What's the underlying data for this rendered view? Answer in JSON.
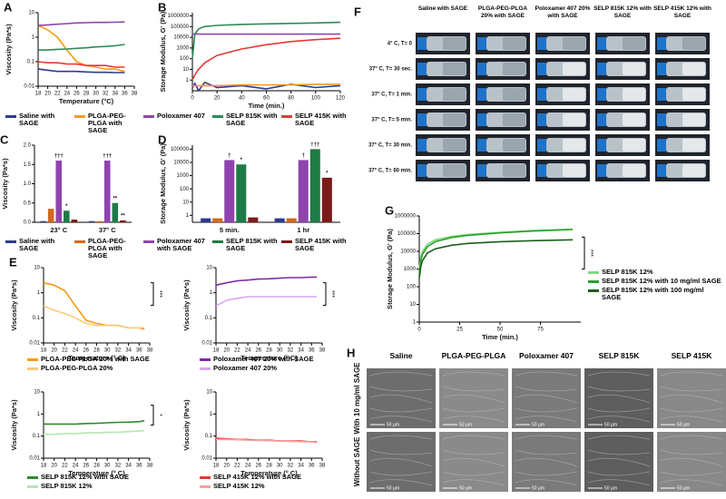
{
  "chart_data": [
    {
      "type": "line",
      "panel": "A",
      "log_y": true,
      "xlabel": "Temperature (°C)",
      "ylabel": "Viscosity (Pa*s)",
      "x": [
        18,
        20,
        22,
        24,
        26,
        28,
        30,
        32,
        34,
        36
      ],
      "xlim": [
        18,
        38
      ],
      "xticks": [
        18,
        20,
        22,
        24,
        26,
        28,
        30,
        32,
        34,
        36,
        38
      ],
      "ylim": [
        0.01,
        10
      ],
      "yticks": [
        0.01,
        0.1,
        1,
        10
      ],
      "series": [
        {
          "name": "Saline with SAGE",
          "color": "#2e3a8c",
          "values": [
            0.05,
            0.045,
            0.04,
            0.04,
            0.04,
            0.038,
            0.037,
            0.037,
            0.036,
            0.036
          ]
        },
        {
          "name": "PLGA-PEG-PLGA with SAGE",
          "color": "#f39c12",
          "values": [
            3,
            2,
            1,
            0.3,
            0.1,
            0.07,
            0.06,
            0.05,
            0.05,
            0.04
          ]
        },
        {
          "name": "Poloxamer 407",
          "color": "#8e44ad",
          "values": [
            3,
            3.2,
            3.4,
            3.6,
            3.8,
            3.9,
            4,
            4,
            4.1,
            4.2
          ]
        },
        {
          "name": "SELP 815K with SAGE",
          "color": "#2e8b57",
          "values": [
            0.3,
            0.3,
            0.32,
            0.33,
            0.35,
            0.37,
            0.4,
            0.42,
            0.45,
            0.5
          ]
        },
        {
          "name": "SELP 415K with SAGE",
          "color": "#e53935",
          "values": [
            0.1,
            0.09,
            0.09,
            0.08,
            0.08,
            0.07,
            0.07,
            0.07,
            0.06,
            0.06
          ]
        }
      ]
    },
    {
      "type": "line",
      "panel": "B",
      "log_y": true,
      "xlabel": "Time (min.)",
      "ylabel": "Storage Modulus, G' (Pa)",
      "x": [
        0,
        2,
        5,
        10,
        20,
        40,
        60,
        80,
        100,
        120
      ],
      "xlim": [
        0,
        120
      ],
      "xticks": [
        0,
        20,
        40,
        60,
        80,
        100,
        120
      ],
      "ylim": [
        0.1,
        2000000
      ],
      "yticks": [
        1,
        10,
        100,
        1000,
        10000,
        100000,
        1000000
      ],
      "series": [
        {
          "color": "#2e3a8c",
          "values": [
            0.2,
            0.5,
            0.1,
            0.6,
            0.2,
            0.3,
            0.15,
            0.4,
            0.2,
            0.3
          ]
        },
        {
          "color": "#f39c12",
          "values": [
            0.3,
            0.3,
            0.3,
            0.3,
            0.3,
            0.35,
            0.35,
            0.35,
            0.4,
            0.4
          ]
        },
        {
          "color": "#8e44ad",
          "values": [
            20000,
            20000,
            20000,
            20000,
            20000,
            20000,
            20000,
            20000,
            20000,
            20000
          ]
        },
        {
          "color": "#2e8b57",
          "values": [
            100,
            20000,
            60000,
            100000,
            130000,
            160000,
            180000,
            200000,
            220000,
            250000
          ]
        },
        {
          "color": "#e53935",
          "values": [
            1,
            3,
            10,
            40,
            200,
            800,
            2000,
            4000,
            6000,
            8000
          ]
        }
      ]
    },
    {
      "type": "bar",
      "panel": "C",
      "ylabel": "Viscosity (Pa*s)",
      "categories": [
        "23° C",
        "37° C"
      ],
      "ylim": [
        0,
        2
      ],
      "yticks": [
        {
          "value": 0,
          "label": "0.0"
        },
        0.5,
        {
          "value": 1,
          "label": "1.0"
        },
        1.5,
        {
          "value": 2,
          "label": "2.0"
        }
      ],
      "series": [
        {
          "name": "Saline with SAGE",
          "color": "#2e3a8c",
          "values": [
            0.03,
            0.03
          ]
        },
        {
          "name": "PLGA-PEG-PLGA with SAGE",
          "color": "#d2691e",
          "values": [
            0.35,
            0.03
          ]
        },
        {
          "name": "Poloxamer 407 with SAGE",
          "color": "#8e44ad",
          "values": [
            1.6,
            1.6
          ],
          "marks": [
            "†††",
            "†††"
          ]
        },
        {
          "name": "SELP 815K with SAGE",
          "color": "#1e7b45",
          "values": [
            0.3,
            0.5
          ],
          "marks": [
            "*",
            "**"
          ]
        },
        {
          "name": "SELP 415K with SAGE",
          "color": "#7b1a1a",
          "values": [
            0.07,
            0.05
          ],
          "marks": [
            null,
            "**"
          ]
        }
      ]
    },
    {
      "type": "bar",
      "panel": "D",
      "log_y": true,
      "ylabel": "Storage Modulus, G' (Pa)",
      "categories": [
        "5 min.",
        "1 hr"
      ],
      "ylim": [
        0.3,
        200000
      ],
      "yticks": [
        1,
        10,
        100,
        1000,
        10000,
        100000
      ],
      "series": [
        {
          "color": "#2e3a8c",
          "values": [
            0.6,
            0.6
          ]
        },
        {
          "color": "#d2691e",
          "values": [
            0.6,
            0.6
          ]
        },
        {
          "color": "#8e44ad",
          "values": [
            15000,
            15000
          ],
          "marks": [
            "†",
            "†"
          ]
        },
        {
          "color": "#1e7b45",
          "values": [
            7000,
            100000
          ],
          "marks": [
            "*",
            "†††"
          ]
        },
        {
          "color": "#7b1a1a",
          "values": [
            0.7,
            700
          ],
          "marks": [
            null,
            "*"
          ]
        }
      ]
    },
    {
      "type": "line",
      "panel": "E",
      "log_y": true,
      "xlabel": "Temperature (° C)",
      "ylabel": "Viscosity (Pa*s)",
      "significance": "***",
      "x": [
        18,
        20,
        22,
        24,
        26,
        28,
        30,
        32,
        34,
        36,
        37
      ],
      "xlim": [
        18,
        38
      ],
      "xticks": [
        18,
        20,
        22,
        24,
        26,
        28,
        30,
        32,
        34,
        36,
        38
      ],
      "ylim": [
        0.01,
        10
      ],
      "yticks": [
        0.01,
        0.1,
        1,
        10
      ],
      "series": [
        {
          "name": "PLGA-PEG-PLGA 20% with SAGE",
          "color": "#f39c12",
          "values": [
            2.5,
            2,
            1.2,
            0.3,
            0.08,
            0.06,
            0.05,
            0.05,
            0.04,
            0.04,
            0.035
          ]
        },
        {
          "name": "PLGA-PEG-PLGA 20%",
          "color": "#fbc97a",
          "values": [
            0.3,
            0.2,
            0.15,
            0.1,
            0.06,
            0.05,
            0.05,
            0.05,
            0.04,
            0.04,
            0.04
          ]
        }
      ]
    },
    {
      "type": "line",
      "log_y": true,
      "xlabel": "Temperature (° C)",
      "ylabel": "Viscosity (Pa*s)",
      "significance": "***",
      "x": [
        18,
        20,
        22,
        24,
        26,
        28,
        30,
        32,
        34,
        36,
        37
      ],
      "xlim": [
        18,
        38
      ],
      "xticks": [
        18,
        20,
        22,
        24,
        26,
        28,
        30,
        32,
        34,
        36,
        38
      ],
      "ylim": [
        0.01,
        10
      ],
      "yticks": [
        0.01,
        0.1,
        1,
        10
      ],
      "series": [
        {
          "name": "Poloxamer 407 20% with SAGE",
          "color": "#7b2fa0",
          "values": [
            2,
            2.5,
            3,
            3.2,
            3.5,
            3.6,
            3.8,
            4,
            4,
            4.2,
            4.2
          ]
        },
        {
          "name": "Poloxamer 407 20%",
          "color": "#d9a6f0",
          "values": [
            0.3,
            0.5,
            0.6,
            0.7,
            0.7,
            0.7,
            0.7,
            0.7,
            0.7,
            0.7,
            0.7
          ]
        }
      ]
    },
    {
      "type": "line",
      "log_y": true,
      "xlabel": "Temperature (° C)",
      "ylabel": "Viscosity (Pa*s)",
      "significance": "*",
      "x": [
        18,
        20,
        22,
        24,
        26,
        28,
        30,
        32,
        34,
        36,
        37
      ],
      "xlim": [
        18,
        38
      ],
      "xticks": [
        18,
        20,
        22,
        24,
        26,
        28,
        30,
        32,
        34,
        36,
        38
      ],
      "ylim": [
        0.01,
        10
      ],
      "yticks": [
        0.01,
        0.1,
        1,
        10
      ],
      "series": [
        {
          "name": "SELP 815K 12% with SAGE",
          "color": "#2e8b2e",
          "values": [
            0.35,
            0.35,
            0.35,
            0.35,
            0.37,
            0.38,
            0.4,
            0.42,
            0.43,
            0.45,
            0.5
          ]
        },
        {
          "name": "SELP 815K 12%",
          "color": "#b5e6b0",
          "values": [
            0.12,
            0.12,
            0.13,
            0.13,
            0.14,
            0.14,
            0.15,
            0.15,
            0.16,
            0.17,
            0.18
          ]
        }
      ]
    },
    {
      "type": "line",
      "log_y": true,
      "xlabel": "Temperature (° C)",
      "ylabel": "Viscosity (Pa*s)",
      "x": [
        18,
        20,
        22,
        24,
        26,
        28,
        30,
        32,
        34,
        36,
        37
      ],
      "xlim": [
        18,
        38
      ],
      "xticks": [
        18,
        20,
        22,
        24,
        26,
        28,
        30,
        32,
        34,
        36,
        38
      ],
      "ylim": [
        0.01,
        10
      ],
      "yticks": [
        0.01,
        0.1,
        1,
        10
      ],
      "series": [
        {
          "name": "SELP 415K 12% with SAGE",
          "color": "#e53935",
          "values": [
            0.08,
            0.075,
            0.07,
            0.07,
            0.065,
            0.065,
            0.06,
            0.06,
            0.06,
            0.055,
            0.055
          ]
        },
        {
          "name": "SELP 415K 12%",
          "color": "#f5a3a1",
          "values": [
            0.07,
            0.07,
            0.068,
            0.066,
            0.064,
            0.062,
            0.06,
            0.058,
            0.056,
            0.055,
            0.05
          ]
        }
      ]
    },
    {
      "type": "line",
      "panel": "G",
      "log_y": true,
      "xlabel": "Time (min.)",
      "ylabel": "Storage Modulus, G' (Pa)",
      "significance": "***",
      "x": [
        0,
        1,
        2,
        5,
        10,
        20,
        30,
        50,
        70,
        95
      ],
      "xlim": [
        0,
        100
      ],
      "xticks": [
        0,
        25,
        50,
        75
      ],
      "ylim": [
        1,
        1000000
      ],
      "yticks": [
        1,
        10,
        100,
        1000,
        10000,
        100000,
        1000000
      ],
      "series": [
        {
          "name": "SELP 815K 12%",
          "color": "#7fd97f",
          "values": [
            1000,
            5000,
            10000,
            25000,
            45000,
            70000,
            90000,
            120000,
            150000,
            180000
          ]
        },
        {
          "name": "SELP 815K 12% with 10 mg/ml SAGE",
          "color": "#2ca02c",
          "values": [
            500,
            3000,
            7000,
            18000,
            35000,
            60000,
            80000,
            110000,
            140000,
            170000
          ]
        },
        {
          "name": "SELP 815K 12% with 100 mg/ml SAGE",
          "color": "#1a5e1a",
          "values": [
            300,
            1500,
            3000,
            8000,
            14000,
            22000,
            28000,
            35000,
            40000,
            45000
          ]
        }
      ]
    }
  ],
  "photo_panels": [
    {
      "panel": "F",
      "kind": "vials",
      "columns": [
        "Saline with SAGE",
        "PLGA-PEG-PLGA 20% with SAGE",
        "Poloxamer 407 20% with SAGE",
        "SELP 815K 12% with SAGE",
        "SELP 415K 12% with SAGE"
      ],
      "rows": [
        "4° C, T= 0",
        "37° C, T= 30 sec.",
        "37° C, T= 1 min.",
        "37° C, T= 5 min.",
        "37° C, T= 30 min.",
        "37° C, T= 60 min."
      ]
    },
    {
      "panel": "H",
      "kind": "sem",
      "scale_bar": "50 µm",
      "columns": [
        "Saline",
        "PLGA-PEG-PLGA",
        "Poloxamer 407",
        "SELP 815K",
        "SELP 415K"
      ],
      "rows": [
        "With 10 mg/ml SAGE",
        "Without SAGE"
      ]
    }
  ]
}
